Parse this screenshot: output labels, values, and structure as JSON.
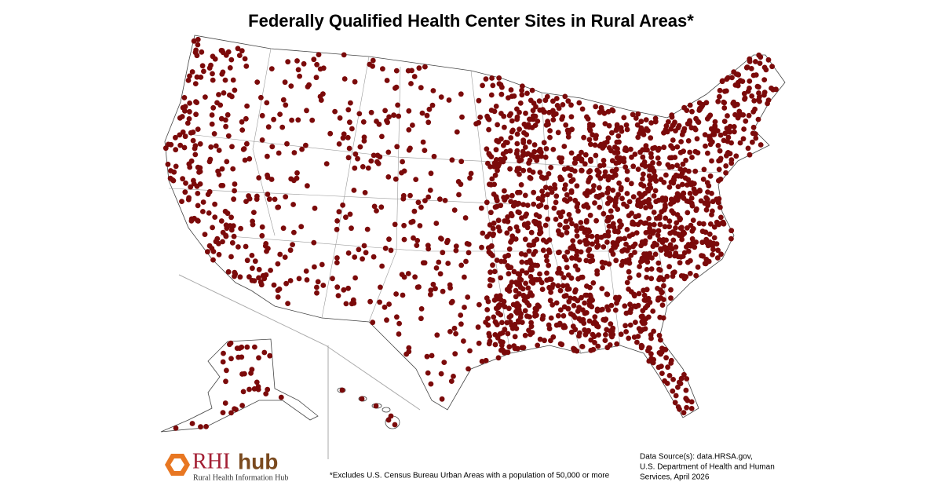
{
  "header": {
    "title": "Federally Qualified Health Center Sites in Rural Areas*"
  },
  "logo": {
    "rhi": "RHI",
    "hub": "hub",
    "subtitle": "Rural Health Information Hub"
  },
  "footnote": "*Excludes U.S. Census Bureau Urban Areas with a population of 50,000 or more",
  "source": {
    "lines": [
      "Data Source(s): data.HRSA.gov,",
      "U.S. Department of Health and Human",
      "Services, April 2026"
    ]
  }
}
